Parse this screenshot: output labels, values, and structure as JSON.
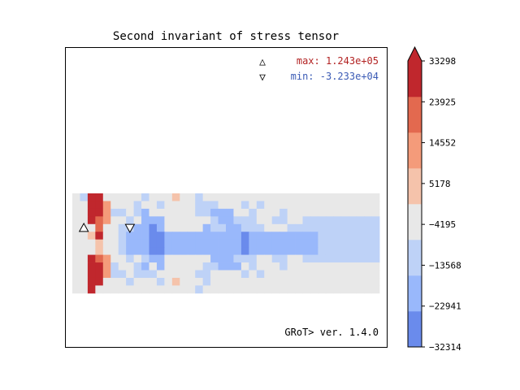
{
  "chart_data": {
    "type": "heatmap",
    "title": "Second invariant of stress tensor",
    "annotations": {
      "max_symbol": "△",
      "max_label": "max:  1.243e+05",
      "min_symbol": "▽",
      "min_label": "min: -3.233e+04",
      "version": "GRoT> ver. 1.4.0"
    },
    "max_color": "#b22222",
    "min_color": "#3b5bb5",
    "colorbar": {
      "ticks": [
        "33298",
        "23925",
        "14552",
        "5178",
        "−4195",
        "−13568",
        "−22941",
        "−32314"
      ],
      "colors": [
        "#6a8bec",
        "#99b8fb",
        "#bed2f7",
        "#e8e8e8",
        "#f5c3ab",
        "#f49b7a",
        "#e3694f",
        "#c0272d"
      ],
      "extend": "max"
    },
    "grid_columns": 40,
    "grid_rows": 13,
    "legend": {
      "0": "#e8e8e8",
      "1": "#bed2f7",
      "2": "#99b8fb",
      "3": "#6a8bec",
      "4": "#f5c3ab",
      "5": "#f49b7a",
      "6": "#e3694f",
      "7": "#c0272d"
    },
    "cells": [
      "0177000001000400100000000000000000000000",
      "0077500010010000111000101000000000000000",
      "0077511012000000112220010001000000000000",
      "0076500102220000001221110011001111111111",
      "0006001122320000021122111000111111111111",
      "0047001222332222222222322222222211111111",
      "0004001222332222222222322222222211111111",
      "0004001222332222222222322222222211111111",
      "0076500101220000002221110011001111111111",
      "0077510012020000011222010001000000000000",
      "0077511011100000110000101000000000000000",
      "0077000100010400010000000000000000000000",
      "0070000000000000100000000000000000000000"
    ],
    "max_marker_cell": [
      4,
      1
    ],
    "min_marker_cell": [
      4,
      7
    ]
  }
}
